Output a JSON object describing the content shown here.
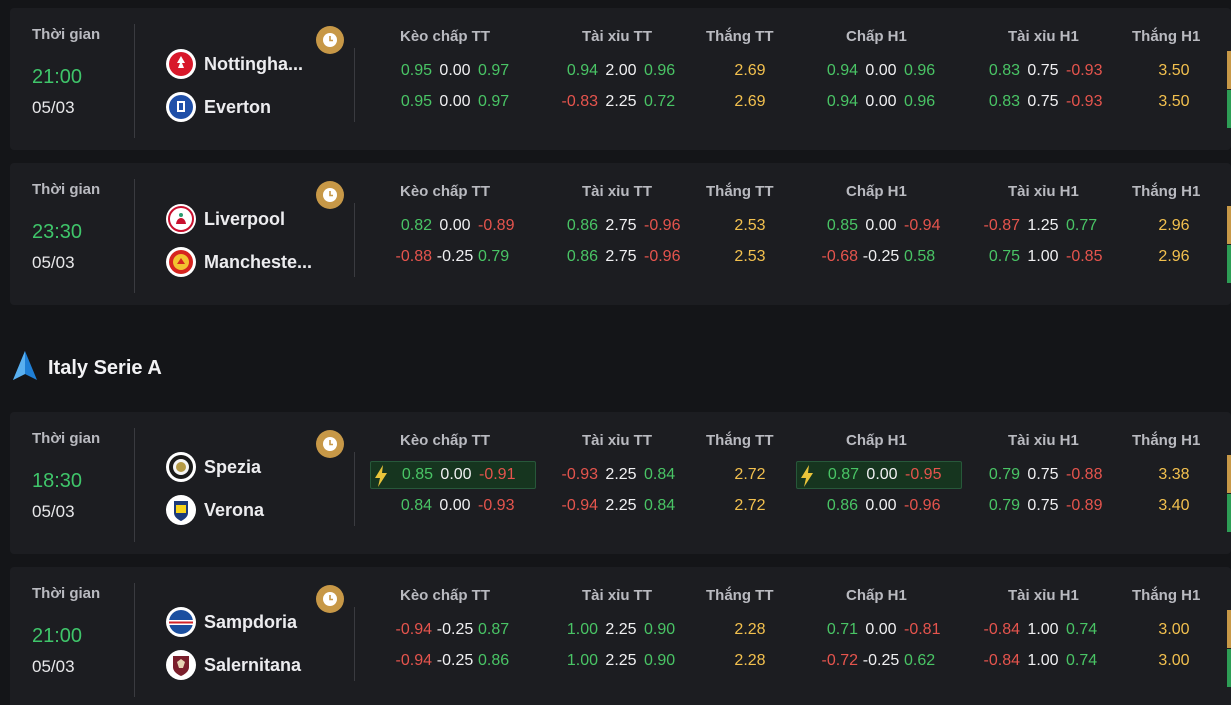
{
  "headers": {
    "time": "Thời gian",
    "keo_chap_tt": "Kèo chấp TT",
    "tai_xiu_tt": "Tài xỉu TT",
    "thang_tt": "Thắng TT",
    "chap_h1": "Chấp H1",
    "tai_xiu_h1": "Tài xỉu H1",
    "thang_h1": "Thắng H1"
  },
  "league": {
    "name": "Italy Serie A",
    "icon": "serie-a-logo-icon"
  },
  "colors": {
    "positive": "#49c465",
    "negative": "#e5544d",
    "win": "#f2c04e",
    "time": "#3fc56a",
    "clock": "#c79847"
  },
  "matches": [
    {
      "time": "21:00",
      "date": "05/03",
      "home": {
        "name": "Nottingha...",
        "icon": "nottingham-forest-logo-icon"
      },
      "away": {
        "name": "Everton",
        "icon": "everton-logo-icon"
      },
      "rows": [
        {
          "kc": [
            "0.95",
            "0.00",
            "0.97"
          ],
          "tx": [
            "0.94",
            "2.00",
            "0.96"
          ],
          "w": "2.69",
          "ch": [
            "0.94",
            "0.00",
            "0.96"
          ],
          "txh": [
            "0.83",
            "0.75",
            "-0.93"
          ],
          "wh": "3.50"
        },
        {
          "kc": [
            "0.95",
            "0.00",
            "0.97"
          ],
          "tx": [
            "-0.83",
            "2.25",
            "0.72"
          ],
          "w": "2.69",
          "ch": [
            "0.94",
            "0.00",
            "0.96"
          ],
          "txh": [
            "0.83",
            "0.75",
            "-0.93"
          ],
          "wh": "3.50"
        }
      ]
    },
    {
      "time": "23:30",
      "date": "05/03",
      "home": {
        "name": "Liverpool",
        "icon": "liverpool-logo-icon"
      },
      "away": {
        "name": "Mancheste...",
        "icon": "manchester-united-logo-icon"
      },
      "rows": [
        {
          "kc": [
            "0.82",
            "0.00",
            "-0.89"
          ],
          "tx": [
            "0.86",
            "2.75",
            "-0.96"
          ],
          "w": "2.53",
          "ch": [
            "0.85",
            "0.00",
            "-0.94"
          ],
          "txh": [
            "-0.87",
            "1.25",
            "0.77"
          ],
          "wh": "2.96"
        },
        {
          "kc": [
            "-0.88",
            "-0.25",
            "0.79"
          ],
          "tx": [
            "0.86",
            "2.75",
            "-0.96"
          ],
          "w": "2.53",
          "ch": [
            "-0.68",
            "-0.25",
            "0.58"
          ],
          "txh": [
            "0.75",
            "1.00",
            "-0.85"
          ],
          "wh": "2.96"
        }
      ]
    },
    {
      "time": "18:30",
      "date": "05/03",
      "home": {
        "name": "Spezia",
        "icon": "spezia-logo-icon"
      },
      "away": {
        "name": "Verona",
        "icon": "verona-logo-icon"
      },
      "rows": [
        {
          "kc": [
            "0.85",
            "0.00",
            "-0.91"
          ],
          "tx": [
            "-0.93",
            "2.25",
            "0.84"
          ],
          "w": "2.72",
          "ch": [
            "0.87",
            "0.00",
            "-0.95"
          ],
          "txh": [
            "0.79",
            "0.75",
            "-0.88"
          ],
          "wh": "3.38"
        },
        {
          "kc": [
            "0.84",
            "0.00",
            "-0.93"
          ],
          "tx": [
            "-0.94",
            "2.25",
            "0.84"
          ],
          "w": "2.72",
          "ch": [
            "0.86",
            "0.00",
            "-0.96"
          ],
          "txh": [
            "0.79",
            "0.75",
            "-0.89"
          ],
          "wh": "3.40"
        }
      ]
    },
    {
      "time": "21:00",
      "date": "05/03",
      "home": {
        "name": "Sampdoria",
        "icon": "sampdoria-logo-icon"
      },
      "away": {
        "name": "Salernitana",
        "icon": "salernitana-logo-icon"
      },
      "rows": [
        {
          "kc": [
            "-0.94",
            "-0.25",
            "0.87"
          ],
          "tx": [
            "1.00",
            "2.25",
            "0.90"
          ],
          "w": "2.28",
          "ch": [
            "0.71",
            "0.00",
            "-0.81"
          ],
          "txh": [
            "-0.84",
            "1.00",
            "0.74"
          ],
          "wh": "3.00"
        },
        {
          "kc": [
            "-0.94",
            "-0.25",
            "0.86"
          ],
          "tx": [
            "1.00",
            "2.25",
            "0.90"
          ],
          "w": "2.28",
          "ch": [
            "-0.72",
            "-0.25",
            "0.62"
          ],
          "txh": [
            "-0.84",
            "1.00",
            "0.74"
          ],
          "wh": "3.00"
        }
      ]
    }
  ]
}
